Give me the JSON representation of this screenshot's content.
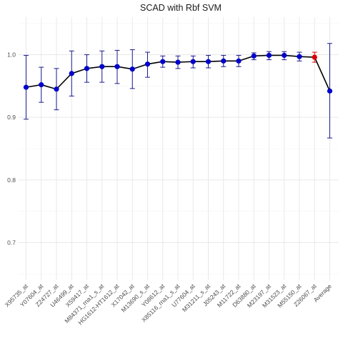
{
  "chart_data": {
    "type": "line",
    "title": "SCAD with Rbf SVM",
    "xlabel": "",
    "ylabel": "",
    "ylim": [
      0.64,
      1.06
    ],
    "yticks": [
      0.7,
      0.8,
      0.9,
      1.0
    ],
    "grid": true,
    "legend": "none",
    "line_color": "#000000",
    "point_color": "#0000cc",
    "highlight_color": "#dd0000",
    "errorbar_color": "#1a1a8c",
    "categories": [
      "X95735_at",
      "Y07604_at",
      "Z24727_at",
      "U46499_at",
      "X59417_at",
      "M84371_rna1_s_at",
      "HG1612-HT1612_at",
      "X17042_at",
      "M13690_s_at",
      "Y08612_at",
      "X85116_rna1_s_at",
      "U77604_at",
      "M31211_s_at",
      "J05243_at",
      "M11722_at",
      "D63880_at",
      "M23197_at",
      "M31523_at",
      "M55150_at",
      "Z26067_at",
      "Average"
    ],
    "series": [
      {
        "values": [
          0.948,
          0.952,
          0.945,
          0.97,
          0.978,
          0.981,
          0.981,
          0.977,
          0.985,
          0.989,
          0.988,
          0.989,
          0.989,
          0.99,
          0.99,
          0.998,
          0.999,
          0.999,
          0.997,
          0.996,
          0.942
        ],
        "lower": [
          0.897,
          0.924,
          0.912,
          0.934,
          0.956,
          0.956,
          0.954,
          0.946,
          0.964,
          0.98,
          0.978,
          0.979,
          0.979,
          0.981,
          0.981,
          0.992,
          0.992,
          0.992,
          0.99,
          0.988,
          0.867
        ],
        "upper": [
          0.999,
          0.98,
          0.978,
          1.006,
          1.0,
          1.006,
          1.007,
          1.008,
          1.004,
          0.998,
          0.998,
          0.998,
          0.999,
          0.999,
          0.999,
          1.003,
          1.005,
          1.005,
          1.004,
          1.004,
          1.018
        ],
        "highlight_index": 19
      }
    ]
  }
}
